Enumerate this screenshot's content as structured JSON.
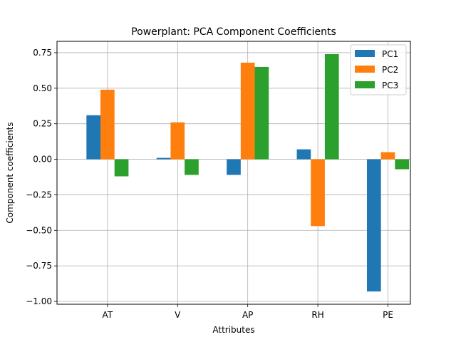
{
  "chart_data": {
    "type": "bar",
    "title": "Powerplant: PCA Component Coefficients",
    "xlabel": "Attributes",
    "ylabel": "Component coefficients",
    "categories": [
      "AT",
      "V",
      "AP",
      "RH",
      "PE"
    ],
    "series": [
      {
        "name": "PC1",
        "color": "#1f77b4",
        "values": [
          0.31,
          0.01,
          -0.11,
          0.07,
          -0.93
        ]
      },
      {
        "name": "PC2",
        "color": "#ff7f0e",
        "values": [
          0.49,
          0.26,
          0.68,
          -0.47,
          0.05
        ]
      },
      {
        "name": "PC3",
        "color": "#2ca02c",
        "values": [
          -0.12,
          -0.11,
          0.65,
          0.74,
          -0.07
        ]
      }
    ],
    "ylim": [
      -1.02,
      0.83
    ],
    "yticks": [
      {
        "value": 0.75,
        "label": "0.75"
      },
      {
        "value": 0.5,
        "label": "0.50"
      },
      {
        "value": 0.25,
        "label": "0.25"
      },
      {
        "value": 0.0,
        "label": "0.00"
      },
      {
        "value": -0.25,
        "label": "−0.25"
      },
      {
        "value": -0.5,
        "label": "−0.50"
      },
      {
        "value": -0.75,
        "label": "−0.75"
      },
      {
        "value": -1.0,
        "label": "−1.00"
      }
    ],
    "grid": true,
    "legend_position": "top-right"
  }
}
